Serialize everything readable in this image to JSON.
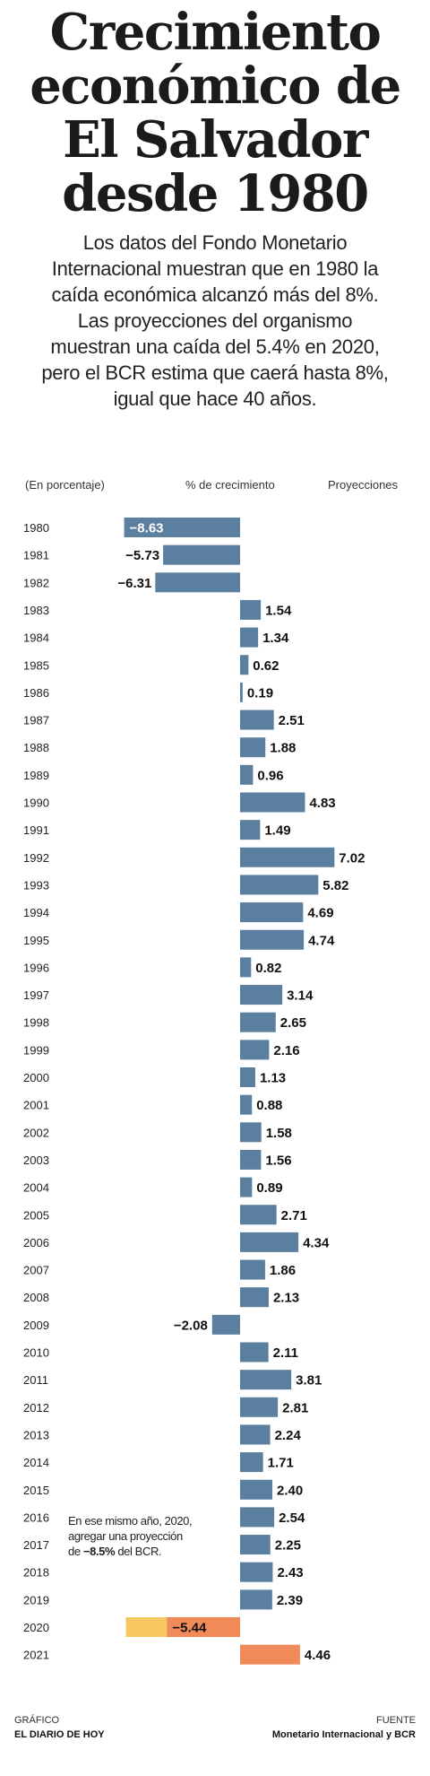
{
  "header": {
    "title_lines": [
      "Crecimiento",
      "económico de",
      "El Salvador",
      "desde 1980"
    ],
    "subtitle_lines": [
      "Los datos del Fondo Monetario",
      "Internacional muestran que en 1980 la",
      "caída económica alcanzó más del 8%.",
      "Las proyecciones del organismo",
      "muestran una caída del 5.4% en 2020,",
      "pero el BCR estima que caerá hasta 8%,",
      "igual que hace 40 años."
    ]
  },
  "column_headers": {
    "unit": "(En porcentaje)",
    "growth": "% de crecimiento",
    "projections": "Proyecciones"
  },
  "note": {
    "line1": "En ese mismo año, 2020,",
    "line2": "agregar una proyección",
    "line3_pre": "de ",
    "line3_strong": "−8.5%",
    "line3_post": " del BCR."
  },
  "footer": {
    "left_label": "GRÁFICO",
    "left_value": "EL DIARIO DE HOY",
    "right_label": "FUENTE",
    "right_value": "Monetario Internacional y BCR"
  },
  "colors": {
    "bar": "#5b7f9f",
    "projection": "#f08a58",
    "bcr_projection": "#f7c862",
    "text": "#1a1a1a"
  },
  "chart_data": {
    "type": "bar",
    "orientation": "horizontal",
    "xlim": [
      -8.63,
      7.02
    ],
    "categories": [
      "1980",
      "1981",
      "1982",
      "1983",
      "1984",
      "1985",
      "1986",
      "1987",
      "1988",
      "1989",
      "1990",
      "1991",
      "1992",
      "1993",
      "1994",
      "1995",
      "1996",
      "1997",
      "1998",
      "1999",
      "2000",
      "2001",
      "2002",
      "2003",
      "2004",
      "2005",
      "2006",
      "2007",
      "2008",
      "2009",
      "2010",
      "2011",
      "2012",
      "2013",
      "2014",
      "2015",
      "2016",
      "2017",
      "2018",
      "2019",
      "2020",
      "2021"
    ],
    "values": [
      -8.63,
      -5.73,
      -6.31,
      1.54,
      1.34,
      0.62,
      0.19,
      2.51,
      1.88,
      0.96,
      4.83,
      1.49,
      7.02,
      5.82,
      4.69,
      4.74,
      0.82,
      3.14,
      2.65,
      2.16,
      1.13,
      0.88,
      1.58,
      1.56,
      0.89,
      2.71,
      4.34,
      1.86,
      2.13,
      -2.08,
      2.11,
      3.81,
      2.81,
      2.24,
      1.71,
      2.4,
      2.54,
      2.25,
      2.43,
      2.39,
      -5.44,
      4.46
    ],
    "labels": [
      "−8.63",
      "−5.73",
      "−6.31",
      "1.54",
      "1.34",
      "0.62",
      "0.19",
      "2.51",
      "1.88",
      "0.96",
      "4.83",
      "1.49",
      "7.02",
      "5.82",
      "4.69",
      "4.74",
      "0.82",
      "3.14",
      "2.65",
      "2.16",
      "1.13",
      "0.88",
      "1.58",
      "1.56",
      "0.89",
      "2.71",
      "4.34",
      "1.86",
      "2.13",
      "−2.08",
      "2.11",
      "3.81",
      "2.81",
      "2.24",
      "1.71",
      "2.40",
      "2.54",
      "2.25",
      "2.43",
      "2.39",
      "−5.44",
      "4.46"
    ],
    "projection_years": [
      "2020",
      "2021"
    ],
    "bcr_projection": {
      "year": "2020",
      "value": -8.5
    }
  }
}
